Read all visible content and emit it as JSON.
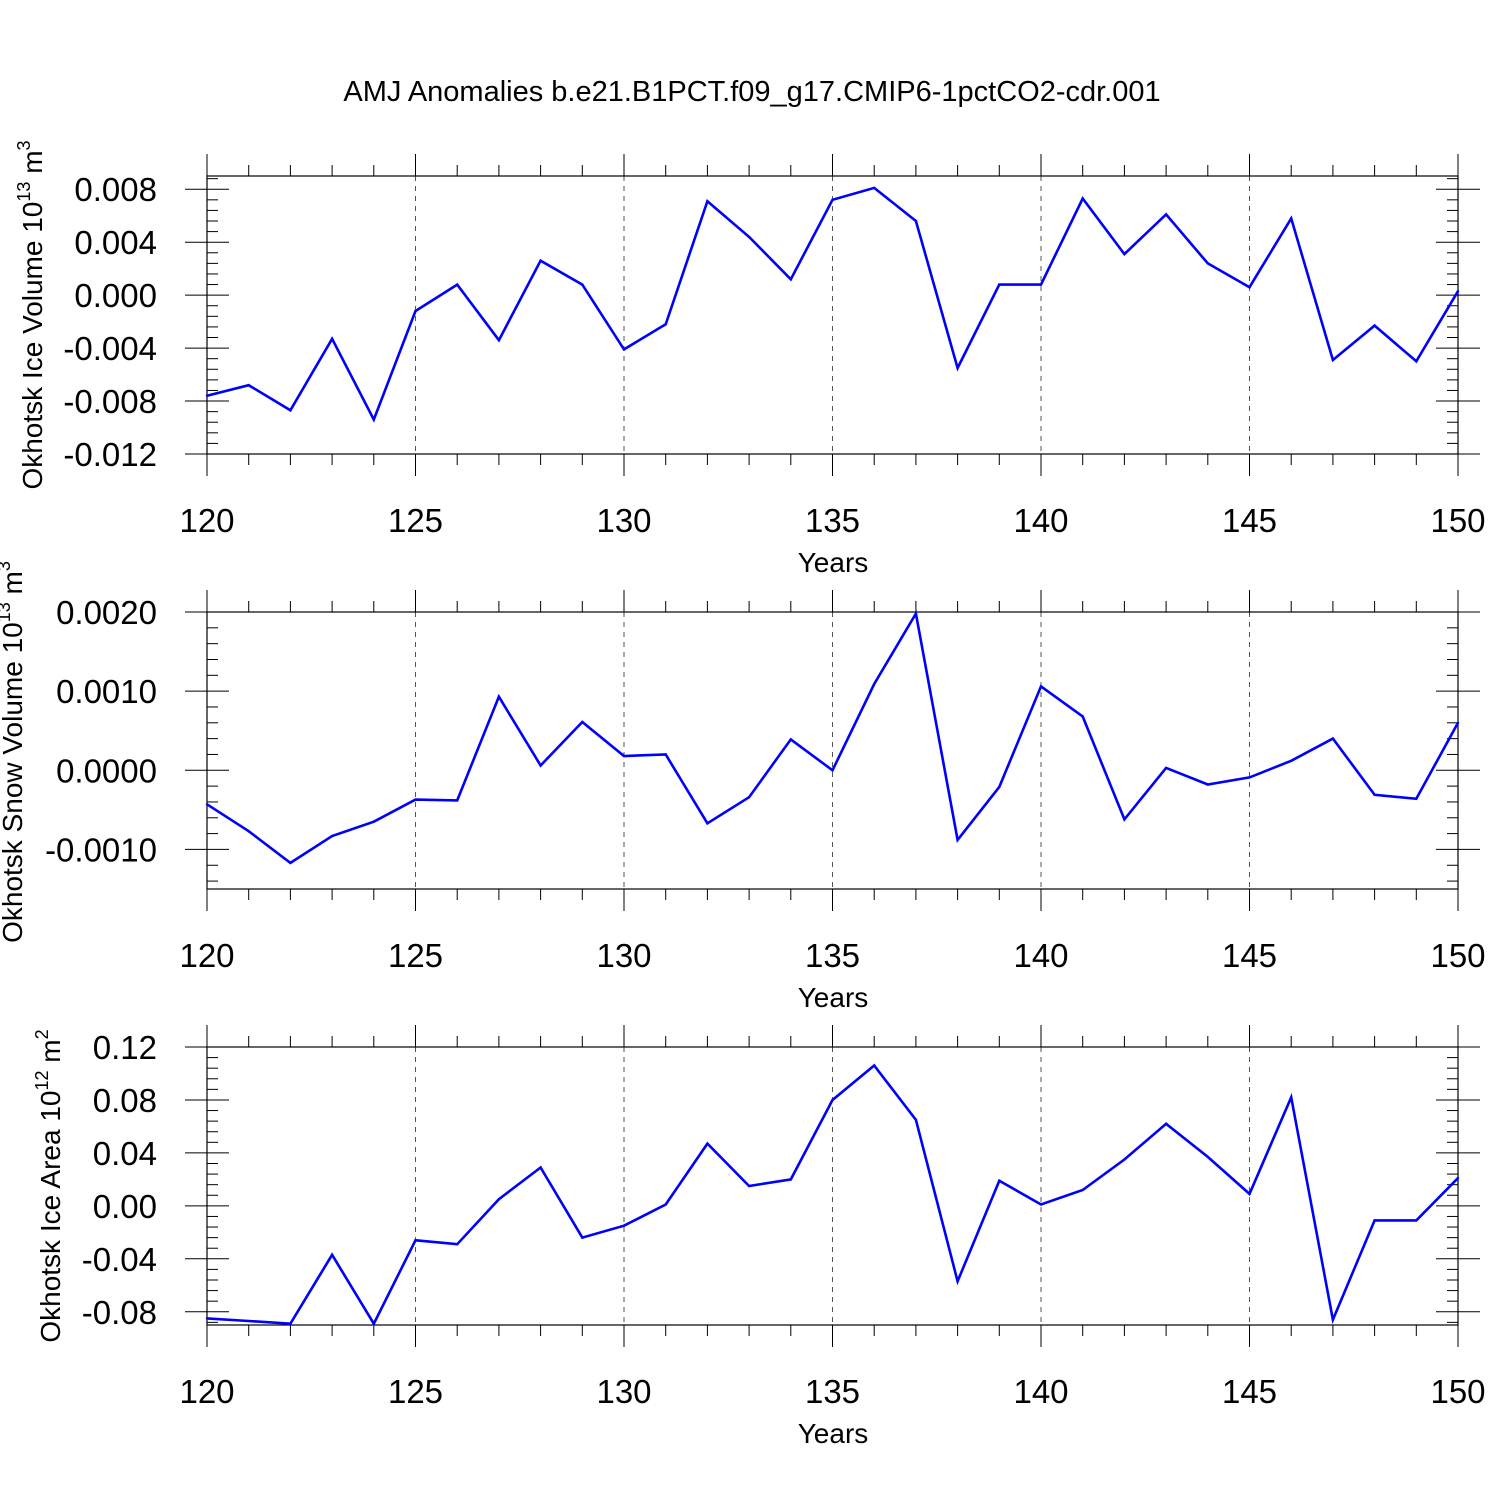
{
  "title": "AMJ Anomalies b.e21.B1PCT.f09_g17.CMIP6-1pctCO2-cdr.001",
  "line_color": "#0000ff",
  "chart_data": [
    {
      "type": "line",
      "ylabel_text": "Okhotsk Ice Volume 10",
      "ylabel_exp": "13",
      "ylabel_unit": " m",
      "ylabel_unit_exp": "3",
      "xlabel": "Years",
      "xlim": [
        120,
        150
      ],
      "ylim": [
        -0.012,
        0.009
      ],
      "xticks": [
        120,
        125,
        130,
        135,
        140,
        145,
        150
      ],
      "yticks": [
        -0.012,
        -0.008,
        -0.004,
        0.0,
        0.004,
        0.008
      ],
      "ytick_labels": [
        "-0.012",
        "-0.008",
        "-0.004",
        "0.000",
        "0.004",
        "0.008"
      ],
      "grid": "vertical-dashed",
      "x": [
        120,
        121,
        122,
        123,
        124,
        125,
        126,
        127,
        128,
        129,
        130,
        131,
        132,
        133,
        134,
        135,
        136,
        137,
        138,
        139,
        140,
        141,
        142,
        143,
        144,
        145,
        146,
        147,
        148,
        149,
        150
      ],
      "y": [
        -0.0076,
        -0.0068,
        -0.0087,
        -0.0033,
        -0.0094,
        -0.0012,
        0.0008,
        -0.0034,
        0.0026,
        0.0008,
        -0.0041,
        -0.0022,
        0.0071,
        0.0044,
        0.0012,
        0.0072,
        0.0081,
        0.0056,
        -0.0055,
        0.0008,
        0.0008,
        0.0073,
        0.0031,
        0.0061,
        0.0024,
        0.0006,
        0.0058,
        -0.0049,
        -0.0023,
        -0.005,
        0.0003
      ]
    },
    {
      "type": "line",
      "ylabel_text": "Okhotsk Snow Volume 10",
      "ylabel_exp": "13",
      "ylabel_unit": " m",
      "ylabel_unit_exp": "3",
      "xlabel": "Years",
      "xlim": [
        120,
        150
      ],
      "ylim": [
        -0.0015,
        0.002
      ],
      "xticks": [
        120,
        125,
        130,
        135,
        140,
        145,
        150
      ],
      "yticks": [
        -0.001,
        0.0,
        0.001,
        0.002
      ],
      "ytick_labels": [
        "-0.0010",
        "0.0000",
        "0.0010",
        "0.0020"
      ],
      "grid": "vertical-dashed",
      "x": [
        120,
        121,
        122,
        123,
        124,
        125,
        126,
        127,
        128,
        129,
        130,
        131,
        132,
        133,
        134,
        135,
        136,
        137,
        138,
        139,
        140,
        141,
        142,
        143,
        144,
        145,
        146,
        147,
        148,
        149,
        150
      ],
      "y": [
        -0.00043,
        -0.00077,
        -0.00117,
        -0.00083,
        -0.00065,
        -0.00037,
        -0.00038,
        0.00093,
        6e-05,
        0.00061,
        0.00018,
        0.0002,
        -0.00067,
        -0.00034,
        0.00039,
        0.0,
        0.00109,
        0.00198,
        -0.00088,
        -0.00021,
        0.00106,
        0.00068,
        -0.00062,
        3e-05,
        -0.00018,
        -9e-05,
        0.00012,
        0.0004,
        -0.00031,
        -0.00036,
        0.0006
      ]
    },
    {
      "type": "line",
      "ylabel_text": "Okhotsk Ice Area 10",
      "ylabel_exp": "12",
      "ylabel_unit": " m",
      "ylabel_unit_exp": "2",
      "xlabel": "Years",
      "xlim": [
        120,
        150
      ],
      "ylim": [
        -0.09,
        0.12
      ],
      "xticks": [
        120,
        125,
        130,
        135,
        140,
        145,
        150
      ],
      "yticks": [
        -0.08,
        -0.04,
        0.0,
        0.04,
        0.08,
        0.12
      ],
      "ytick_labels": [
        "-0.08",
        "-0.04",
        "0.00",
        "0.04",
        "0.08",
        "0.12"
      ],
      "grid": "vertical-dashed",
      "x": [
        120,
        121,
        122,
        123,
        124,
        125,
        126,
        127,
        128,
        129,
        130,
        131,
        132,
        133,
        134,
        135,
        136,
        137,
        138,
        139,
        140,
        141,
        142,
        143,
        144,
        145,
        146,
        147,
        148,
        149,
        150
      ],
      "y": [
        -0.085,
        -0.087,
        -0.089,
        -0.037,
        -0.089,
        -0.026,
        -0.029,
        0.005,
        0.029,
        -0.024,
        -0.015,
        0.001,
        0.047,
        0.015,
        0.02,
        0.08,
        0.106,
        0.065,
        -0.057,
        0.019,
        0.001,
        0.012,
        0.035,
        0.062,
        0.037,
        0.009,
        0.082,
        -0.086,
        -0.011,
        -0.011,
        0.021
      ]
    }
  ]
}
